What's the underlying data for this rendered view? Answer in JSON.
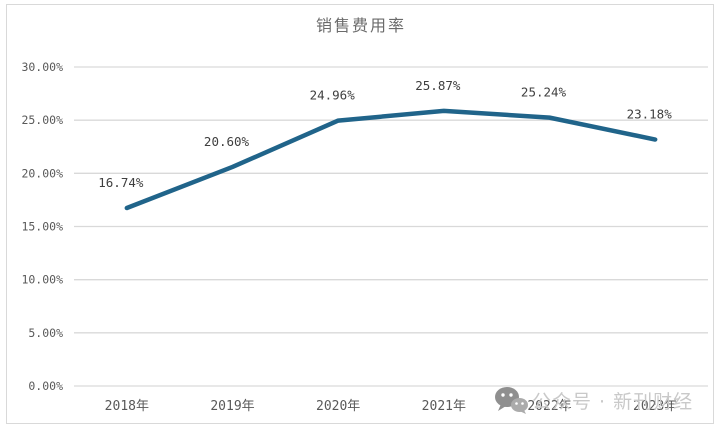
{
  "watermark": {
    "icon": "wechat-icon",
    "text": "公众号 · 新刊财经"
  },
  "chart_data": {
    "type": "line",
    "title": "销售费用率",
    "categories": [
      "2018年",
      "2019年",
      "2020年",
      "2021年",
      "2022年",
      "2023年"
    ],
    "values": [
      16.74,
      20.6,
      24.96,
      25.87,
      25.24,
      23.18
    ],
    "data_labels": [
      "16.74%",
      "20.60%",
      "24.96%",
      "25.87%",
      "25.24%",
      "23.18%"
    ],
    "xlabel": "",
    "ylabel": "",
    "ylim": [
      0,
      30
    ],
    "yticks": [
      0,
      5,
      10,
      15,
      20,
      25,
      30
    ],
    "ytick_labels": [
      "0.00%",
      "5.00%",
      "10.00%",
      "15.00%",
      "20.00%",
      "25.00%",
      "30.00%"
    ],
    "grid": true,
    "legend": false,
    "colors": {
      "line": "#20648a",
      "grid": "#d9d9d9",
      "tick_text": "#595959",
      "data_label_text": "#3f3f3f",
      "title_text": "#6b6b6b",
      "watermark_text": "#c9c9c9"
    }
  }
}
